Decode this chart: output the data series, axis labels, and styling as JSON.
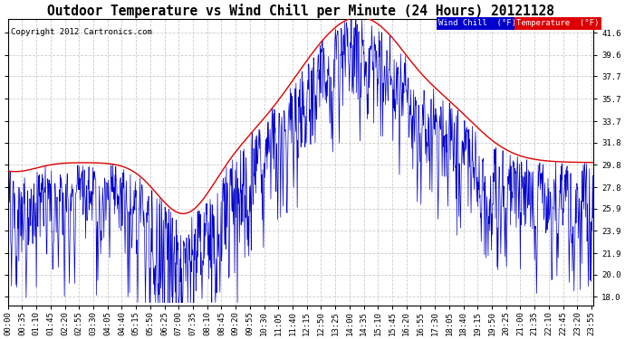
{
  "title": "Outdoor Temperature vs Wind Chill per Minute (24 Hours) 20121128",
  "copyright": "Copyright 2012 Cartronics.com",
  "ylabel_right_ticks": [
    18.0,
    20.0,
    21.9,
    23.9,
    25.9,
    27.8,
    29.8,
    31.8,
    33.7,
    35.7,
    37.7,
    39.6,
    41.6
  ],
  "ylim": [
    17.2,
    42.8
  ],
  "temp_color": "#dd0000",
  "windchill_color": "#0000cc",
  "legend_windchill_label": "Wind Chill  (°F)",
  "legend_temp_label": "Temperature  (°F)",
  "background_color": "#ffffff",
  "grid_color": "#cccccc",
  "title_fontsize": 10.5,
  "tick_fontsize": 6.5,
  "num_minutes": 1440,
  "legend_wc_bg": "#0000cc",
  "legend_temp_bg": "#dd0000"
}
